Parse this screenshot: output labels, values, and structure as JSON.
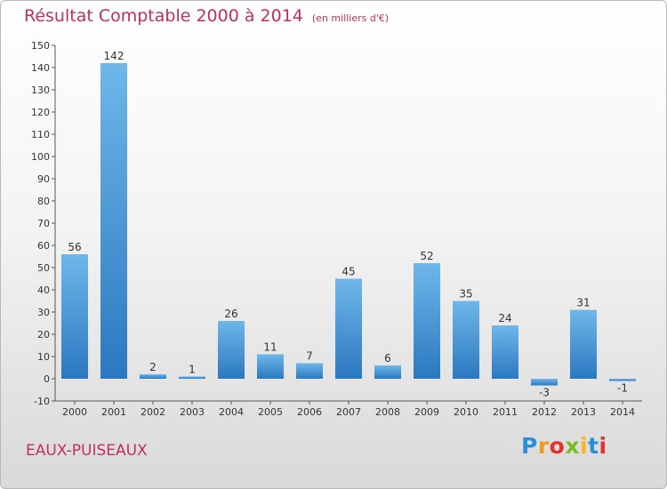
{
  "header": {
    "title": "Résultat Comptable 2000 à 2014",
    "subtitle": "(en milliers d'€)"
  },
  "footer": {
    "commune": "EAUX-PUISEAUX",
    "logo": {
      "letters": [
        "P",
        "r",
        "o",
        "x",
        "i",
        "t",
        "i"
      ],
      "colors": [
        "#2a8fd6",
        "#f09a1c",
        "#e5322d",
        "#7db928",
        "#f3b81b",
        "#2a8fd6",
        "#e5322d"
      ]
    }
  },
  "chart_data": {
    "type": "bar",
    "title": "Résultat Comptable 2000 à 2014",
    "subtitle": "(en milliers d'€)",
    "xlabel": "",
    "ylabel": "",
    "categories": [
      "2000",
      "2001",
      "2002",
      "2003",
      "2004",
      "2005",
      "2006",
      "2007",
      "2008",
      "2009",
      "2010",
      "2011",
      "2012",
      "2013",
      "2014"
    ],
    "values": [
      56,
      142,
      2,
      1,
      26,
      11,
      7,
      45,
      6,
      52,
      35,
      24,
      -3,
      31,
      -1
    ],
    "value_labels": [
      "56",
      "142",
      "2",
      "1",
      "26",
      "11",
      "7",
      "45",
      "6",
      "52",
      "35",
      "24",
      "-3",
      "31",
      "-1"
    ],
    "ylim": [
      -10,
      150
    ],
    "yticks": [
      -10,
      0,
      10,
      20,
      30,
      40,
      50,
      60,
      70,
      80,
      90,
      100,
      110,
      120,
      130,
      140,
      150
    ],
    "ytick_labels": [
      "-10",
      "0",
      "10",
      "20",
      "30",
      "40",
      "50",
      "60",
      "70",
      "80",
      "90",
      "100",
      "110",
      "120",
      "130",
      "140",
      "150"
    ],
    "grid": false,
    "bar_color_light": "#6fb7ea",
    "bar_color_dark": "#2a78c0"
  }
}
